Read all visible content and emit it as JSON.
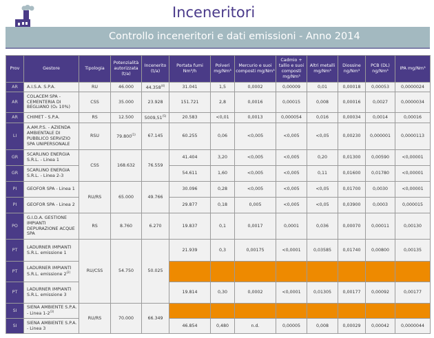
{
  "header": {
    "title": "Inceneritori",
    "subtitle": "Controllo inceneritori e dati emissioni - Anno 2014",
    "colors": {
      "primary": "#4a3b87",
      "banner": "#a3b9c0",
      "missing": "#ee8a00"
    },
    "logo_icon": "factory-icon"
  },
  "table": {
    "columns": [
      "Prov",
      "Gestore",
      "Tipologia",
      "Potenzialità autorizzata (t/a)",
      "Incenerito (t/a)",
      "Portata fumi Nm³/h",
      "Polveri mg/Nm³",
      "Mercurio e suoi composti mg/Nm³",
      "Cadmio + tallio e suoi composti mg/Nm³",
      "Altri metalli mg/Nm³",
      "Diossine ng/Nm³",
      "PCB (DL) ng/Nm³",
      "IPA mg/Nm³"
    ],
    "rows": [
      {
        "prov": "AR",
        "gestore": "A.I.S.A. S.P.A.",
        "tipologia": "RU",
        "potenzialita": "46.000",
        "incenerito": "44.358",
        "incenerito_note": "(4)",
        "values": [
          "31.041",
          "1,5",
          "0,0002",
          "0,00009",
          "0,01",
          "0,00018",
          "0,00053",
          "0,0000024"
        ]
      },
      {
        "prov": "AR",
        "gestore": "COLACEM SPA - CEMENTERIA DI BEGLIANO (O₂ 10%)",
        "tipologia": "CSS",
        "potenzialita": "35.000",
        "incenerito": "23.928",
        "values": [
          "151.721",
          "2,8",
          "0,0016",
          "0,00015",
          "0,008",
          "0,00016",
          "0,0027",
          "0,0000034"
        ]
      },
      {
        "prov": "AR",
        "gestore": "CHIMET - S.P.A.",
        "tipologia": "RS",
        "potenzialita": "12.500",
        "incenerito": "5009,51",
        "incenerito_note": "(5)",
        "values": [
          "20.583",
          "<0,01",
          "0,0013",
          "0,000054",
          "0,016",
          "0,00034",
          "0,0014",
          "0,00016"
        ]
      },
      {
        "prov": "LI",
        "gestore": "A.AM.P.S. - AZIENDA AMBIENTALE DI PUBBLICO SERVIZIO SPA UNIPERSONALE",
        "tipologia": "RSU",
        "potenzialita": "79.800",
        "potenzialita_note": "(1)",
        "incenerito": "67.145",
        "values": [
          "60.255",
          "0,06",
          "<0,005",
          "<0,005",
          "<0,05",
          "0,00230",
          "0,000001",
          "0,0000113"
        ]
      },
      {
        "prov": "GR",
        "gestore": "SCARLINO ENERGIA S.R.L. - Linea 1",
        "tipologia": "CSS",
        "potenzialita": "168.632",
        "incenerito": "76.559",
        "values": [
          "41.404",
          "3,20",
          "<0,005",
          "<0,005",
          "0,20",
          "0,01300",
          "0,00590",
          "<0,00001"
        ]
      },
      {
        "prov": "GR",
        "gestore": "SCARLINO ENERGIA S.R.L. - Linea 2-3",
        "values": [
          "54.611",
          "1,60",
          "<0,005",
          "<0,005",
          "0,11",
          "0,01600",
          "0,01780",
          "<0,00001"
        ]
      },
      {
        "prov": "PI",
        "gestore": "GEOFOR SPA - Linea 1",
        "tipologia": "RU/RS",
        "potenzialita": "65.000",
        "incenerito": "49.766",
        "values": [
          "30.096",
          "0,28",
          "<0,005",
          "<0,005",
          "<0,05",
          "0,01700",
          "0,0030",
          "<0,00001"
        ]
      },
      {
        "prov": "PI",
        "gestore": "GEOFOR SPA - Linea 2",
        "values": [
          "29.877",
          "0,18",
          "0,005",
          "<0,005",
          "<0,05",
          "0,03900",
          "0,0003",
          "0,000015"
        ]
      },
      {
        "prov": "PO",
        "gestore": "G.I.D.A. GESTIONE IMPIANTI DEPURAZIONE ACQUE SPA",
        "tipologia": "RS",
        "potenzialita": "8.760",
        "incenerito": "6.270",
        "values": [
          "19.837",
          "0,1",
          "0,0017",
          "0,0001",
          "0,036",
          "0,00070",
          "0,00011",
          "0,00130"
        ]
      },
      {
        "prov": "PT",
        "gestore": "LADURNER IMPIANTI S.R.L. emissione 1",
        "tipologia": "RU/CSS",
        "potenzialita": "54.750",
        "incenerito": "50.025",
        "values": [
          "21.939",
          "0,3",
          "0,00175",
          "<0,0001",
          "0,03585",
          "0,01740",
          "0,00800",
          "0,00135"
        ]
      },
      {
        "prov": "PT",
        "gestore": "LADURNER IMPIANTI S.R.L. emissione 2",
        "gestore_note": "(2)",
        "missing": true
      },
      {
        "prov": "PT",
        "gestore": "LADURNER IMPIANTI S.R.L. emissione 3",
        "values": [
          "19.814",
          "0,30",
          "0,0002",
          "<0,0001",
          "0,01305",
          "0,00177",
          "0,00092",
          "0,00177"
        ]
      },
      {
        "prov": "SI",
        "gestore": "SIENA AMBIENTE S.P.A. - Linea 1-2",
        "gestore_note": "(3)",
        "tipologia": "RU/RS",
        "potenzialita": "70.000",
        "incenerito": "66.349",
        "missing": true
      },
      {
        "prov": "SI",
        "gestore": "SIENA AMBIENTE S.P.A. - Linea 3",
        "values": [
          "46.854",
          "0,480",
          "n.d.",
          "0,00005",
          "0,008",
          "0,00029",
          "0,00042",
          "0,0000044"
        ]
      }
    ]
  }
}
